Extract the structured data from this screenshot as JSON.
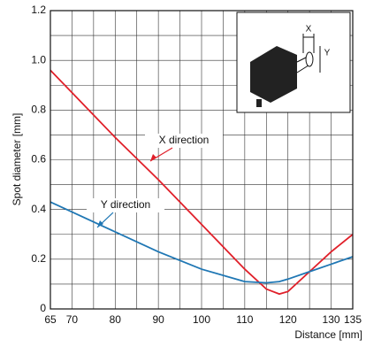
{
  "chart_data": {
    "type": "line",
    "x_label": "Distance [mm]",
    "y_label": "Spot diameter [mm]",
    "x": [
      65,
      70,
      80,
      90,
      100,
      110,
      115,
      118,
      120,
      125,
      130,
      135
    ],
    "series": [
      {
        "name": "X direction",
        "color": "#e0202a",
        "values": [
          0.96,
          0.87,
          0.69,
          0.52,
          0.34,
          0.16,
          0.08,
          0.06,
          0.07,
          0.15,
          0.23,
          0.3
        ]
      },
      {
        "name": "Y direction",
        "color": "#1f77b4",
        "values": [
          0.43,
          0.39,
          0.31,
          0.23,
          0.16,
          0.11,
          0.105,
          0.11,
          0.12,
          0.15,
          0.18,
          0.21
        ]
      }
    ],
    "xlim": [
      65,
      135
    ],
    "ylim": [
      0,
      1.2
    ],
    "xticks": [
      65,
      70,
      80,
      90,
      100,
      110,
      120,
      130,
      135
    ],
    "yticks": [
      0,
      0.2,
      0.4,
      0.6,
      0.8,
      {
        "value": 1,
        "label": "1.0"
      },
      1.2
    ],
    "x_minor_ticks": [
      75,
      85,
      95,
      105,
      115,
      125
    ],
    "y_minor_ticks": [
      0.1,
      0.3,
      0.5,
      0.7,
      0.9,
      1.1
    ],
    "grid": true,
    "inset_labels": [
      "X",
      "Y"
    ]
  }
}
